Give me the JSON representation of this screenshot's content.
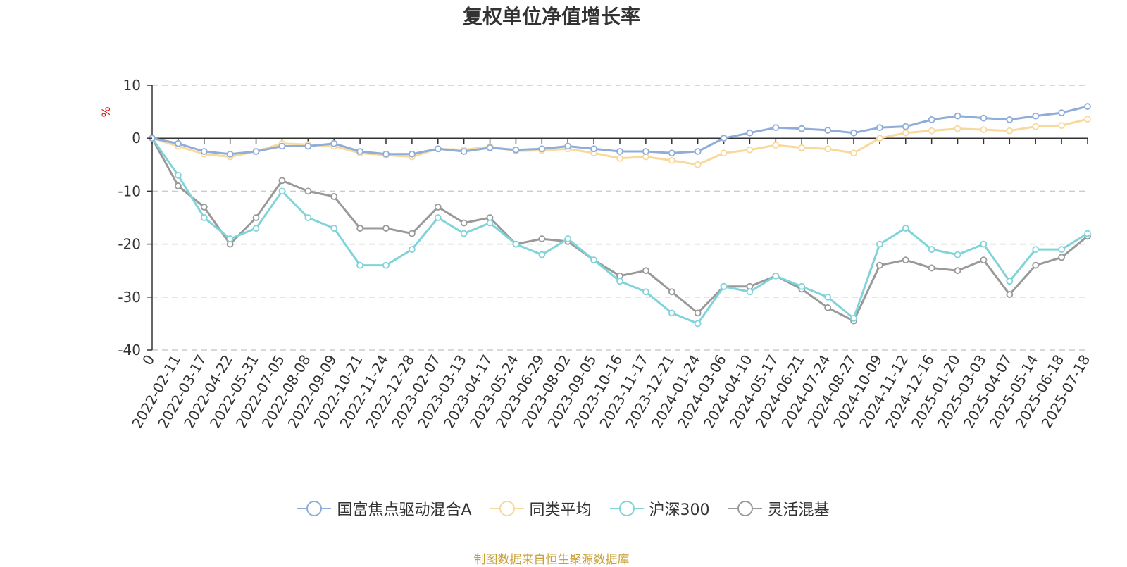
{
  "chart_data": {
    "type": "line",
    "title": "复权单位净值增长率",
    "ylabel": "%",
    "ylim": [
      -40,
      10
    ],
    "yticks": [
      10,
      0,
      -10,
      -20,
      -30,
      -40
    ],
    "grid": true,
    "legend_position": "bottom",
    "categories": [
      "0",
      "2022-02-11",
      "2022-03-17",
      "2022-04-22",
      "2022-05-31",
      "2022-07-05",
      "2022-08-08",
      "2022-09-09",
      "2022-10-21",
      "2022-11-24",
      "2022-12-28",
      "2023-02-07",
      "2023-03-13",
      "2023-04-17",
      "2023-05-24",
      "2023-06-29",
      "2023-08-02",
      "2023-09-05",
      "2023-10-16",
      "2023-11-17",
      "2023-12-21",
      "2024-01-24",
      "2024-03-06",
      "2024-04-10",
      "2024-05-17",
      "2024-06-21",
      "2024-07-24",
      "2024-08-27",
      "2024-10-09",
      "2024-11-12",
      "2024-12-16",
      "2025-01-20",
      "2025-03-03",
      "2025-04-07",
      "2025-05-14",
      "2025-06-18",
      "2025-07-18"
    ],
    "series": [
      {
        "name": "国富焦点驱动混合A",
        "color": "#8fadd9",
        "values": [
          0,
          -1,
          -2.5,
          -3,
          -2.5,
          -1.5,
          -1.5,
          -1,
          -2.5,
          -3,
          -3,
          -2,
          -2.5,
          -1.8,
          -2.2,
          -2,
          -1.5,
          -2,
          -2.5,
          -2.5,
          -2.8,
          -2.5,
          0,
          1,
          2,
          1.8,
          1.5,
          1,
          2,
          2.2,
          3.5,
          4.2,
          3.8,
          3.5,
          4.2,
          4.8,
          6
        ]
      },
      {
        "name": "同类平均",
        "color": "#f9d99b",
        "values": [
          0,
          -1.5,
          -3,
          -3.5,
          -2.5,
          -1,
          -1.2,
          -1.5,
          -2.8,
          -3.2,
          -3.5,
          -2,
          -2.2,
          -1.6,
          -2.4,
          -2.3,
          -2,
          -2.8,
          -3.8,
          -3.5,
          -4.2,
          -5,
          -2.8,
          -2.2,
          -1.3,
          -1.8,
          -2,
          -2.8,
          0,
          1,
          1.4,
          1.8,
          1.6,
          1.4,
          2.2,
          2.4,
          3.6
        ]
      },
      {
        "name": "沪深300",
        "color": "#80d4d9",
        "values": [
          0,
          -7,
          -15,
          -19,
          -17,
          -10,
          -15,
          -17,
          -24,
          -24,
          -21,
          -15,
          -18,
          -16,
          -20,
          -22,
          -19,
          -23,
          -27,
          -29,
          -33,
          -35,
          -28,
          -29,
          -26,
          -28,
          -30,
          -34,
          -20,
          -17,
          -21,
          -22,
          -20,
          -27,
          -21,
          -21,
          -18
        ]
      },
      {
        "name": "灵活混基",
        "color": "#999999",
        "values": [
          0,
          -9,
          -13,
          -20,
          -15,
          -8,
          -10,
          -11,
          -17,
          -17,
          -18,
          -13,
          -16,
          -15,
          -20,
          -19,
          -19.5,
          -23,
          -26,
          -25,
          -29,
          -33,
          -28,
          -28,
          -26,
          -28.5,
          -32,
          -34.5,
          -24,
          -23,
          -24.5,
          -25,
          -23,
          -29.5,
          -24,
          -22.5,
          -18.5
        ]
      }
    ]
  },
  "footer": {
    "source": "制图数据来自恒生聚源数据库"
  }
}
